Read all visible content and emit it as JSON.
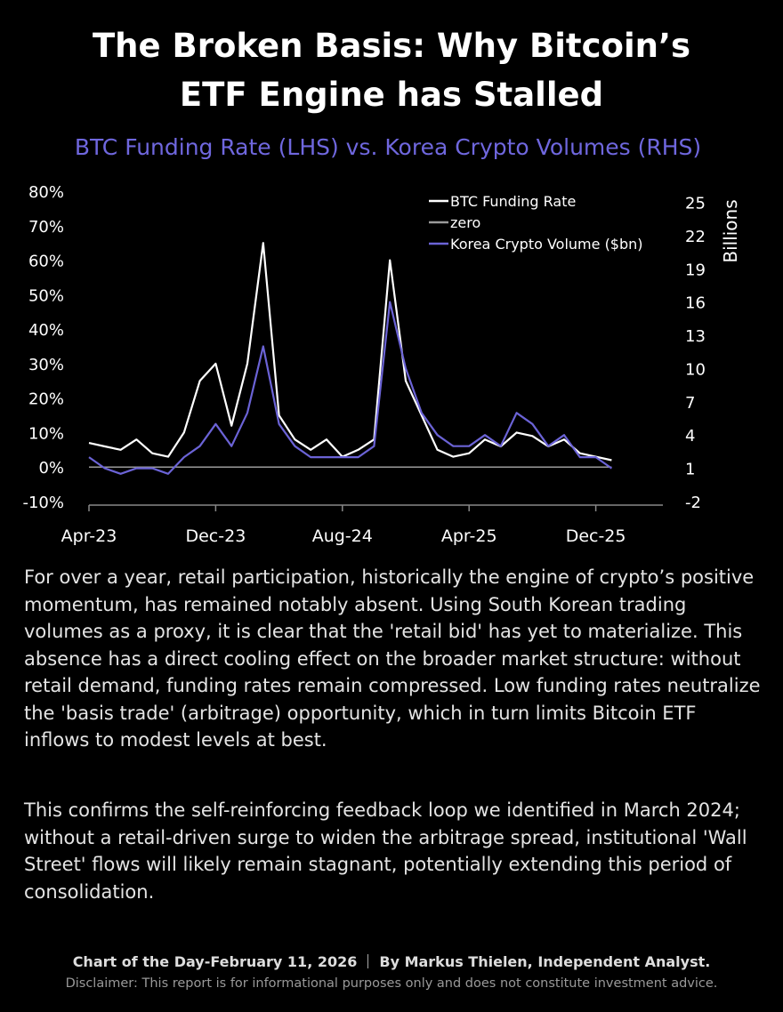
{
  "header": {
    "title_line1": "The Broken Basis: Why Bitcoin’s",
    "title_line2": "ETF Engine has Stalled"
  },
  "chart_data": {
    "type": "line",
    "title": "BTC Funding Rate (LHS) vs. Korea Crypto Volumes (RHS)",
    "y2_label": "Billions",
    "categories": [
      "Apr-23",
      null,
      null,
      null,
      null,
      null,
      null,
      null,
      "Dec-23",
      null,
      null,
      null,
      null,
      null,
      null,
      null,
      "Aug-24",
      null,
      null,
      null,
      null,
      null,
      null,
      null,
      "Apr-25",
      null,
      null,
      null,
      null,
      null,
      null,
      null,
      "Dec-25",
      null
    ],
    "series": [
      {
        "name": "BTC Funding Rate",
        "color": "#ffffff",
        "values": [
          7,
          6,
          5,
          8,
          4,
          3,
          10,
          25,
          30,
          12,
          30,
          65,
          15,
          8,
          5,
          8,
          3,
          5,
          8,
          60,
          25,
          15,
          5,
          3,
          4,
          8,
          6,
          10,
          9,
          6,
          8,
          4,
          3,
          2
        ]
      },
      {
        "name": "zero",
        "color": "#9a9a9a",
        "values": [
          0,
          0,
          0,
          0,
          0,
          0,
          0,
          0,
          0,
          0,
          0,
          0,
          0,
          0,
          0,
          0,
          0,
          0,
          0,
          0,
          0,
          0,
          0,
          0,
          0,
          0,
          0,
          0,
          0,
          0,
          0,
          0,
          0,
          0
        ]
      },
      {
        "name": "Korea Crypto Volume ($bn)",
        "color": "#6b63d6",
        "axis": "y2",
        "values": [
          2,
          1,
          0.5,
          1,
          1,
          0.5,
          2,
          3,
          5,
          3,
          6,
          12,
          5,
          3,
          2,
          2,
          2,
          2,
          3,
          16,
          10,
          6,
          4,
          3,
          3,
          4,
          3,
          6,
          5,
          3,
          4,
          2,
          2,
          1
        ]
      }
    ],
    "ylim": [
      -10,
      80
    ],
    "yticks": [
      {
        "value": -10,
        "label": "-10%"
      },
      {
        "value": 0,
        "label": "0%"
      },
      {
        "value": 10,
        "label": "10%"
      },
      {
        "value": 20,
        "label": "20%"
      },
      {
        "value": 30,
        "label": "30%"
      },
      {
        "value": 40,
        "label": "40%"
      },
      {
        "value": 50,
        "label": "50%"
      },
      {
        "value": 60,
        "label": "60%"
      },
      {
        "value": 70,
        "label": "70%"
      },
      {
        "value": 80,
        "label": "80%"
      }
    ],
    "y2lim": [
      -2,
      26
    ],
    "y2ticks": [
      -2,
      1,
      4,
      7,
      10,
      13,
      16,
      19,
      22,
      25
    ],
    "legend": "upper right"
  },
  "body": {
    "paragraphs": [
      "For over a year, retail participation, historically the engine of crypto’s positive momentum, has remained notably absent. Using South Korean trading volumes as a proxy, it is clear that the 'retail bid' has yet to materialize. This absence has a direct cooling effect on the broader market structure: without retail demand, funding rates remain compressed. Low funding rates neutralize the 'basis trade' (arbitrage) opportunity, which in turn limits Bitcoin ETF inflows to modest levels at best.",
      "This confirms the self-reinforcing feedback loop we identified in March 2024; without a retail-driven surge to widen the arbitrage spread, institutional 'Wall Street' flows will likely remain stagnant, potentially extending this period of consolidation."
    ]
  },
  "footer": {
    "left": "Chart of the Day-February 11, 2026",
    "right": "By Markus Thielen, Independent Analyst.",
    "disclaimer": "Disclaimer: This report is for informational purposes only and does not constitute investment advice."
  }
}
